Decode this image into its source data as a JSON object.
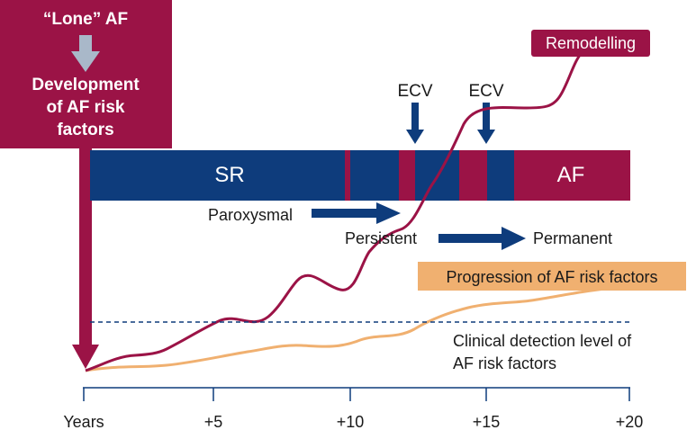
{
  "colors": {
    "crimson": "#9b1346",
    "navy": "#0e3c7c",
    "orange": "#f0b070",
    "arrow_gray": "#a9b8c9",
    "text": "#1a1a1a"
  },
  "top_box": {
    "line1": "“Lone” AF",
    "line2": "Development",
    "line3": "of AF risk",
    "line4": "factors"
  },
  "rhythm_bar": {
    "sr_label": "SR",
    "af_label": "AF"
  },
  "ecv_labels": [
    "ECV",
    "ECV"
  ],
  "remodelling_label": "Remodelling",
  "stage_labels": {
    "paroxysmal": "Paroxysmal",
    "persistent": "Persistent",
    "permanent": "Permanent"
  },
  "progression_label": "Progression of AF risk factors",
  "clinical_detection": {
    "line1": "Clinical detection level of",
    "line2": "AF risk factors"
  },
  "axis": {
    "ticks": [
      "Years",
      "+5",
      "+10",
      "+15",
      "+20"
    ]
  }
}
